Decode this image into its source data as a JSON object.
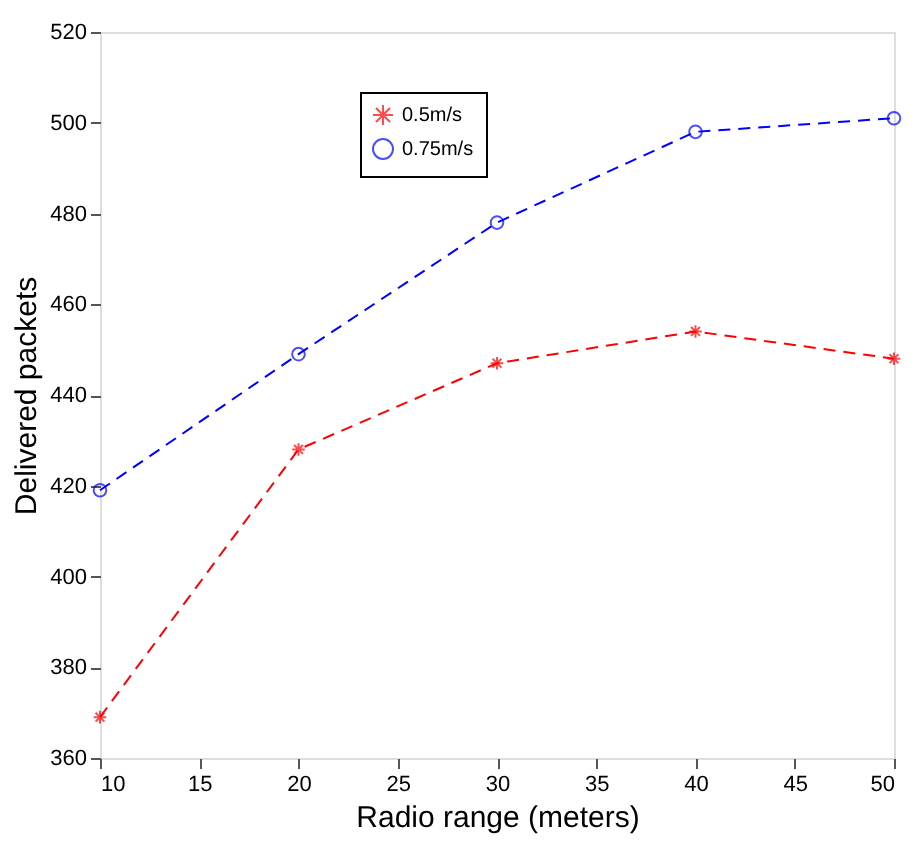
{
  "chart_data": {
    "type": "line",
    "xlabel": "Radio range (meters)",
    "ylabel": "Delivered packets",
    "x": [
      10,
      20,
      30,
      40,
      50
    ],
    "series": [
      {
        "name": "0.5m/s",
        "color": "#ff0000",
        "marker": "cross",
        "values": [
          369,
          428,
          447,
          454,
          448
        ]
      },
      {
        "name": "0.75m/s",
        "color": "#0000ff",
        "marker": "circle",
        "values": [
          419,
          449,
          478,
          498,
          501
        ]
      }
    ],
    "xlim": [
      10,
      50
    ],
    "xticks": [
      10,
      15,
      20,
      25,
      30,
      35,
      40,
      45,
      50
    ],
    "ylim": [
      360,
      520
    ],
    "yticks": [
      360,
      380,
      400,
      420,
      440,
      460,
      480,
      500,
      520
    ],
    "grid": false,
    "legend": "top left",
    "line_style": "dashed"
  }
}
